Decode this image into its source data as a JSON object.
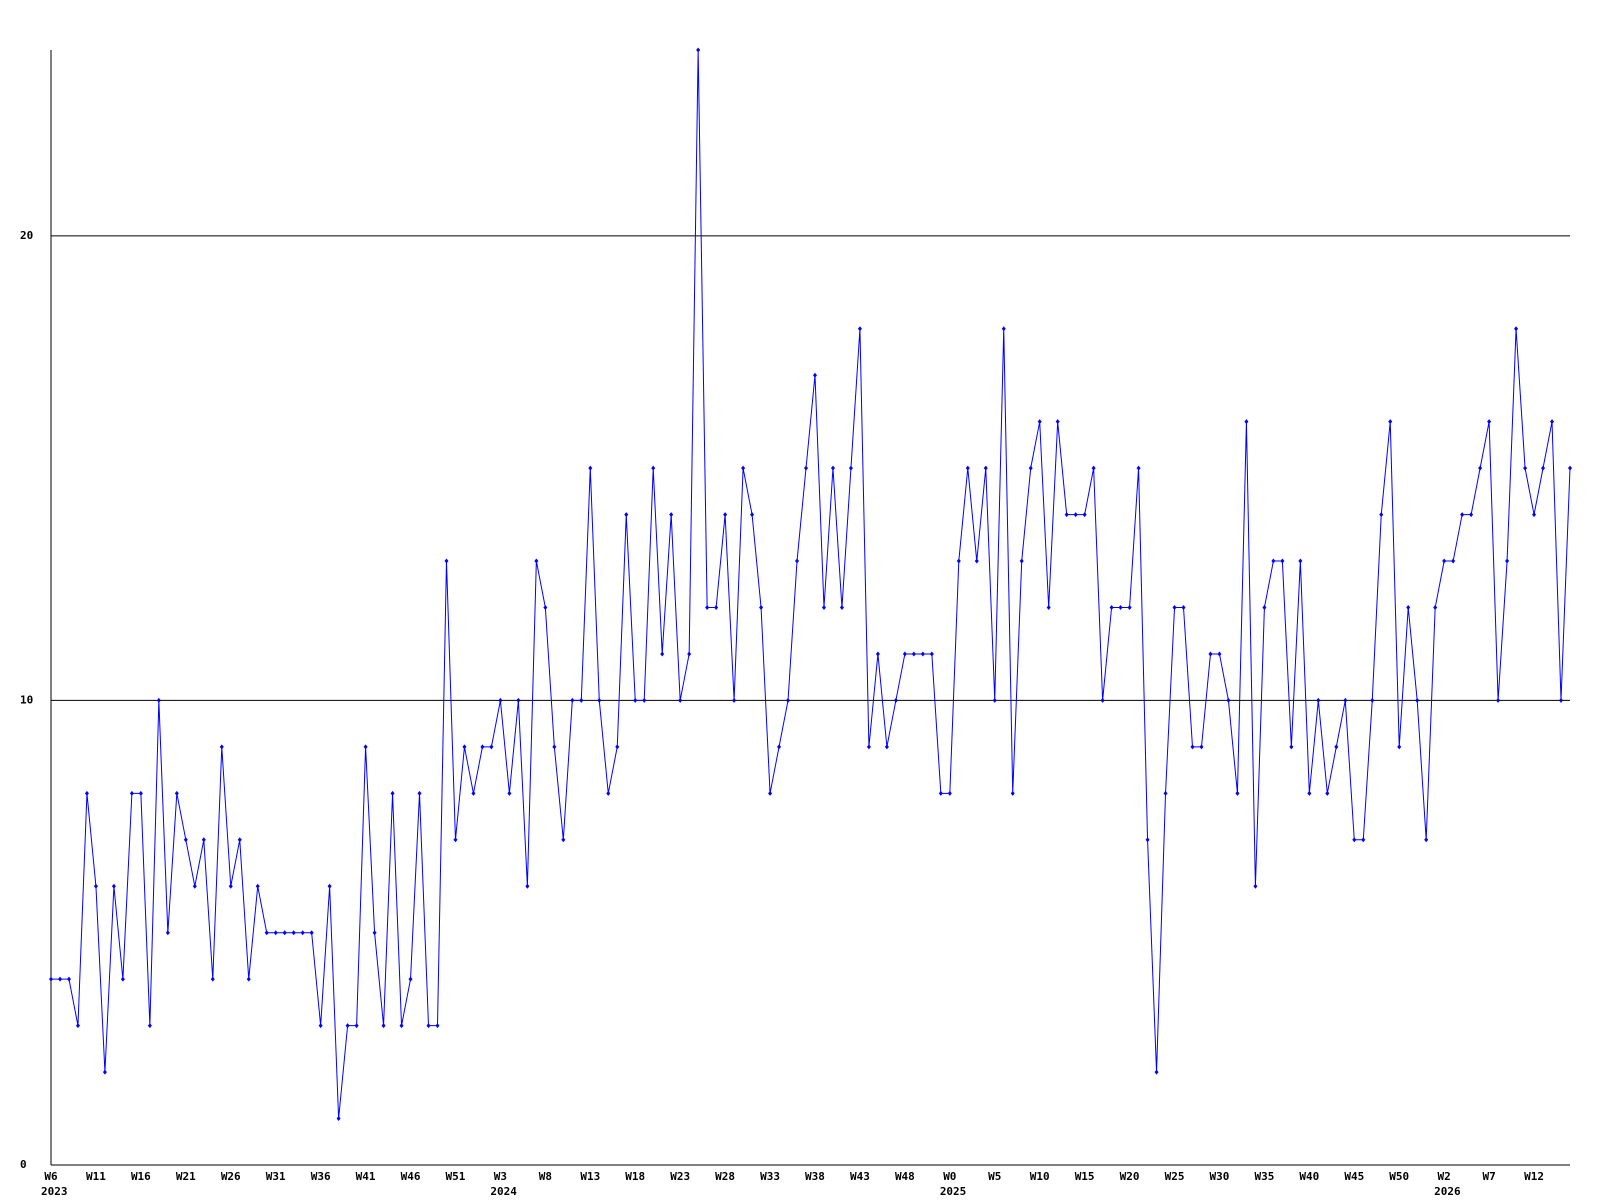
{
  "chart_data": {
    "type": "line",
    "categories": [
      "W6",
      null,
      null,
      null,
      null,
      "W11",
      null,
      null,
      null,
      null,
      "W16",
      null,
      null,
      null,
      null,
      "W21",
      null,
      null,
      null,
      null,
      "W26",
      null,
      null,
      null,
      null,
      "W31",
      null,
      null,
      null,
      null,
      "W36",
      null,
      null,
      null,
      null,
      "W41",
      null,
      null,
      null,
      null,
      "W46",
      null,
      null,
      null,
      null,
      "W51",
      null,
      null,
      null,
      null,
      "W3",
      null,
      null,
      null,
      null,
      "W8",
      null,
      null,
      null,
      null,
      "W13",
      null,
      null,
      null,
      null,
      "W18",
      null,
      null,
      null,
      null,
      "W23",
      null,
      null,
      null,
      null,
      "W28",
      null,
      null,
      null,
      null,
      "W33",
      null,
      null,
      null,
      null,
      "W38",
      null,
      null,
      null,
      null,
      "W43",
      null,
      null,
      null,
      null,
      "W48",
      null,
      null,
      null,
      null,
      "W0",
      null,
      null,
      null,
      null,
      "W5",
      null,
      null,
      null,
      null,
      "W10",
      null,
      null,
      null,
      null,
      "W15",
      null,
      null,
      null,
      null,
      "W20",
      null,
      null,
      null,
      null,
      "W25",
      null,
      null,
      null,
      null,
      "W30",
      null,
      null,
      null,
      null,
      "W35",
      null,
      null,
      null,
      null,
      "W40",
      null,
      null,
      null,
      null,
      "W45",
      null,
      null,
      null,
      null,
      "W50",
      null,
      null,
      null,
      null,
      "W2",
      null,
      null,
      null,
      null,
      "W7",
      null,
      null,
      null,
      null,
      "W12",
      null,
      null,
      null,
      null
    ],
    "years": [
      "2023",
      null,
      null,
      null,
      null,
      null,
      null,
      null,
      null,
      null,
      null,
      null,
      null,
      null,
      null,
      null,
      null,
      null,
      null,
      null,
      null,
      null,
      null,
      null,
      null,
      null,
      null,
      null,
      null,
      null,
      null,
      null,
      null,
      null,
      null,
      null,
      null,
      null,
      null,
      null,
      null,
      null,
      null,
      null,
      null,
      null,
      null,
      null,
      null,
      null,
      "2024",
      null,
      null,
      null,
      null,
      null,
      null,
      null,
      null,
      null,
      null,
      null,
      null,
      null,
      null,
      null,
      null,
      null,
      null,
      null,
      null,
      null,
      null,
      null,
      null,
      null,
      null,
      null,
      null,
      null,
      null,
      null,
      null,
      null,
      null,
      null,
      null,
      null,
      null,
      null,
      null,
      null,
      null,
      null,
      null,
      null,
      null,
      null,
      null,
      null,
      "2025",
      null,
      null,
      null,
      null,
      null,
      null,
      null,
      null,
      null,
      null,
      null,
      null,
      null,
      null,
      null,
      null,
      null,
      null,
      null,
      null,
      null,
      null,
      null,
      null,
      null,
      null,
      null,
      null,
      null,
      null,
      null,
      null,
      null,
      null,
      null,
      null,
      null,
      null,
      null,
      null,
      null,
      null,
      null,
      null,
      null,
      null,
      null,
      null,
      null,
      null,
      null,
      null,
      null,
      null,
      "2026",
      null,
      null,
      null,
      null,
      null,
      null,
      null,
      null,
      null,
      null,
      null,
      null,
      null,
      null
    ],
    "series": [
      {
        "color": "#0000ff",
        "values": [
          4,
          4,
          4,
          3,
          8,
          6,
          2,
          6,
          4,
          8,
          8,
          3,
          10,
          5,
          8,
          7,
          6,
          7,
          4,
          9,
          6,
          7,
          4,
          6,
          5,
          5,
          5,
          5,
          5,
          5,
          3,
          6,
          1,
          3,
          3,
          9,
          5,
          3,
          8,
          3,
          4,
          8,
          3,
          3,
          13,
          7,
          9,
          8,
          9,
          9,
          10,
          8,
          10,
          6,
          13,
          12,
          9,
          7,
          10,
          10,
          15,
          10,
          8,
          9,
          14,
          10,
          10,
          15,
          11,
          14,
          10,
          11,
          24,
          12,
          12,
          14,
          10,
          15,
          14,
          12,
          8,
          9,
          10,
          13,
          15,
          17,
          12,
          15,
          12,
          15,
          18,
          9,
          11,
          9,
          10,
          11,
          11,
          11,
          11,
          8,
          8,
          13,
          15,
          13,
          15,
          10,
          18,
          8,
          13,
          15,
          16,
          12,
          16,
          14,
          14,
          14,
          15,
          10,
          12,
          12,
          12,
          15,
          7,
          2,
          8,
          12,
          12,
          9,
          9,
          11,
          11,
          10,
          8,
          16,
          6,
          12,
          13,
          13,
          9,
          13,
          8,
          10,
          8,
          9,
          10,
          7,
          7,
          10,
          14,
          16,
          9,
          12,
          10,
          7,
          12,
          13,
          13,
          14,
          14,
          15,
          16,
          10,
          13,
          18,
          15,
          14,
          15,
          16,
          10,
          15
        ]
      }
    ],
    "ylim": [
      0,
      24
    ],
    "yticks": [
      0,
      10,
      20
    ],
    "grid": true
  }
}
